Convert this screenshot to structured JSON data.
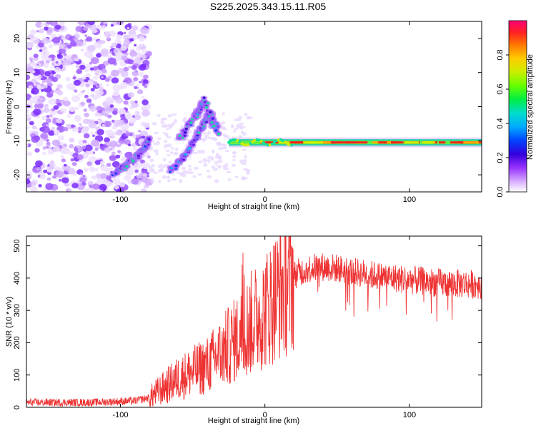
{
  "title": "S225.2025.343.15.11.R05",
  "chart_data": [
    {
      "type": "heatmap",
      "xlabel": "Height of straight line (km)",
      "ylabel": "Frequency (Hz)",
      "xlim": [
        -165,
        150
      ],
      "ylim": [
        -25,
        25
      ],
      "x_ticks": [
        -100,
        0,
        100
      ],
      "y_ticks": [
        -20,
        -10,
        0,
        10,
        20
      ],
      "colorbar": {
        "label": "Normalized spectral amplitude",
        "range": [
          0.0,
          1.0
        ],
        "ticks": [
          "0.0",
          "0.2",
          "0.4",
          "0.6",
          "0.8"
        ],
        "tick_values": [
          0.0,
          0.2,
          0.4,
          0.6,
          0.8
        ]
      },
      "features": [
        {
          "name": "noise-region",
          "x_range": [
            -165,
            -80
          ],
          "y_range": [
            -25,
            25
          ],
          "amplitude": 0.2
        },
        {
          "name": "track-a",
          "points": [
            [
              -105,
              -20
            ],
            [
              -95,
              -17
            ],
            [
              -85,
              -13
            ],
            [
              -80,
              -9
            ]
          ],
          "amplitude": 0.3
        },
        {
          "name": "track-b",
          "points": [
            [
              -65,
              -19
            ],
            [
              -55,
              -14
            ],
            [
              -45,
              -7
            ],
            [
              -38,
              -2
            ],
            [
              -32,
              -8
            ]
          ],
          "amplitude": 0.35
        },
        {
          "name": "track-c",
          "points": [
            [
              -60,
              -10
            ],
            [
              -48,
              -3
            ],
            [
              -42,
              2
            ],
            [
              -35,
              -6
            ]
          ],
          "amplitude": 0.3
        },
        {
          "name": "steady-line",
          "x_range": [
            -25,
            150
          ],
          "frequency": -10.5,
          "amplitude": 0.9
        }
      ]
    },
    {
      "type": "line",
      "xlabel": "Height of straight line (km)",
      "ylabel": "SNR (10 * v/v)",
      "xlim": [
        -165,
        150
      ],
      "ylim": [
        0,
        530
      ],
      "x_ticks": [
        -100,
        0,
        100
      ],
      "y_ticks": [
        0,
        100,
        200,
        300,
        400,
        500
      ],
      "color": "#ee3333",
      "series": [
        {
          "name": "SNR",
          "x": [
            -165,
            -120,
            -90,
            -80,
            -70,
            -60,
            -50,
            -40,
            -30,
            -20,
            -10,
            0,
            10,
            20,
            30,
            40,
            50,
            60,
            80,
            100,
            120,
            150
          ],
          "values": [
            15,
            15,
            20,
            30,
            60,
            90,
            110,
            130,
            170,
            210,
            260,
            300,
            360,
            410,
            430,
            435,
            430,
            420,
            405,
            395,
            385,
            380
          ]
        }
      ]
    }
  ]
}
